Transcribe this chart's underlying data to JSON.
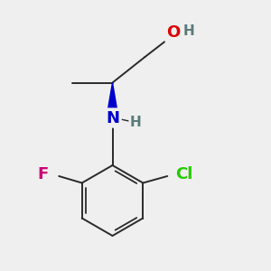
{
  "background_color": "#efefef",
  "bond_color": "#2a2a2a",
  "atom_colors": {
    "O": "#dd0000",
    "N": "#0000cc",
    "Cl": "#22cc00",
    "F": "#cc0077",
    "C": "#2a2a2a"
  },
  "figsize": [
    3.0,
    3.0
  ],
  "dpi": 100
}
